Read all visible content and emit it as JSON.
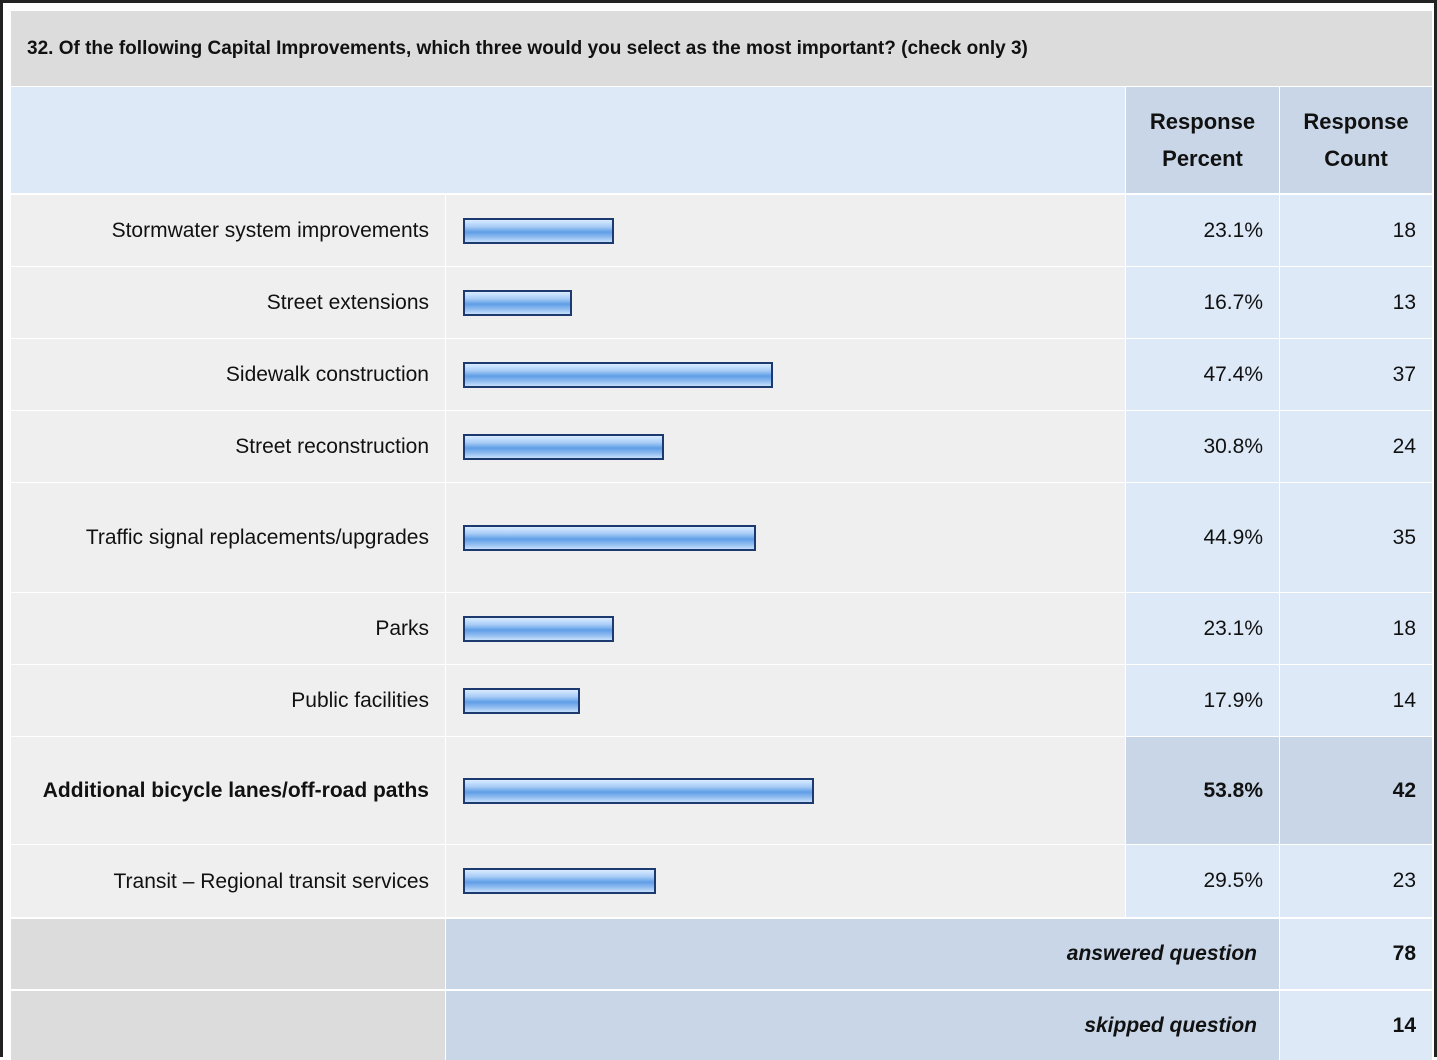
{
  "title": "32. Of the following Capital Improvements, which three would you select as the most important? (check only 3)",
  "header": {
    "response_percent": "Response Percent",
    "response_count": "Response Count"
  },
  "chart_data": {
    "type": "bar",
    "orientation": "horizontal",
    "categories": [
      "Stormwater system improvements",
      "Street extensions",
      "Sidewalk construction",
      "Street reconstruction",
      "Traffic signal replacements/upgrades",
      "Parks",
      "Public facilities",
      "Additional bicycle lanes/off-road paths",
      "Transit – Regional transit services"
    ],
    "percent_labels": [
      "23.1%",
      "16.7%",
      "47.4%",
      "30.8%",
      "44.9%",
      "23.1%",
      "17.9%",
      "53.8%",
      "29.5%"
    ],
    "values": [
      23.1,
      16.7,
      47.4,
      30.8,
      44.9,
      23.1,
      17.9,
      53.8,
      29.5
    ],
    "counts": [
      18,
      13,
      37,
      24,
      35,
      18,
      14,
      42,
      23
    ],
    "highlighted_index": 7,
    "xlim": [
      0,
      100
    ]
  },
  "footer": {
    "answered_label": "answered question",
    "answered_value": 78,
    "skipped_label": "skipped question",
    "skipped_value": 14
  },
  "colors": {
    "bar_border": "#1c3a70",
    "bar_fill": "#5f9ee6",
    "header_bg": "#dde9f7",
    "highlight_bg": "#c8d6e8",
    "title_bg": "#dcdcdc"
  }
}
